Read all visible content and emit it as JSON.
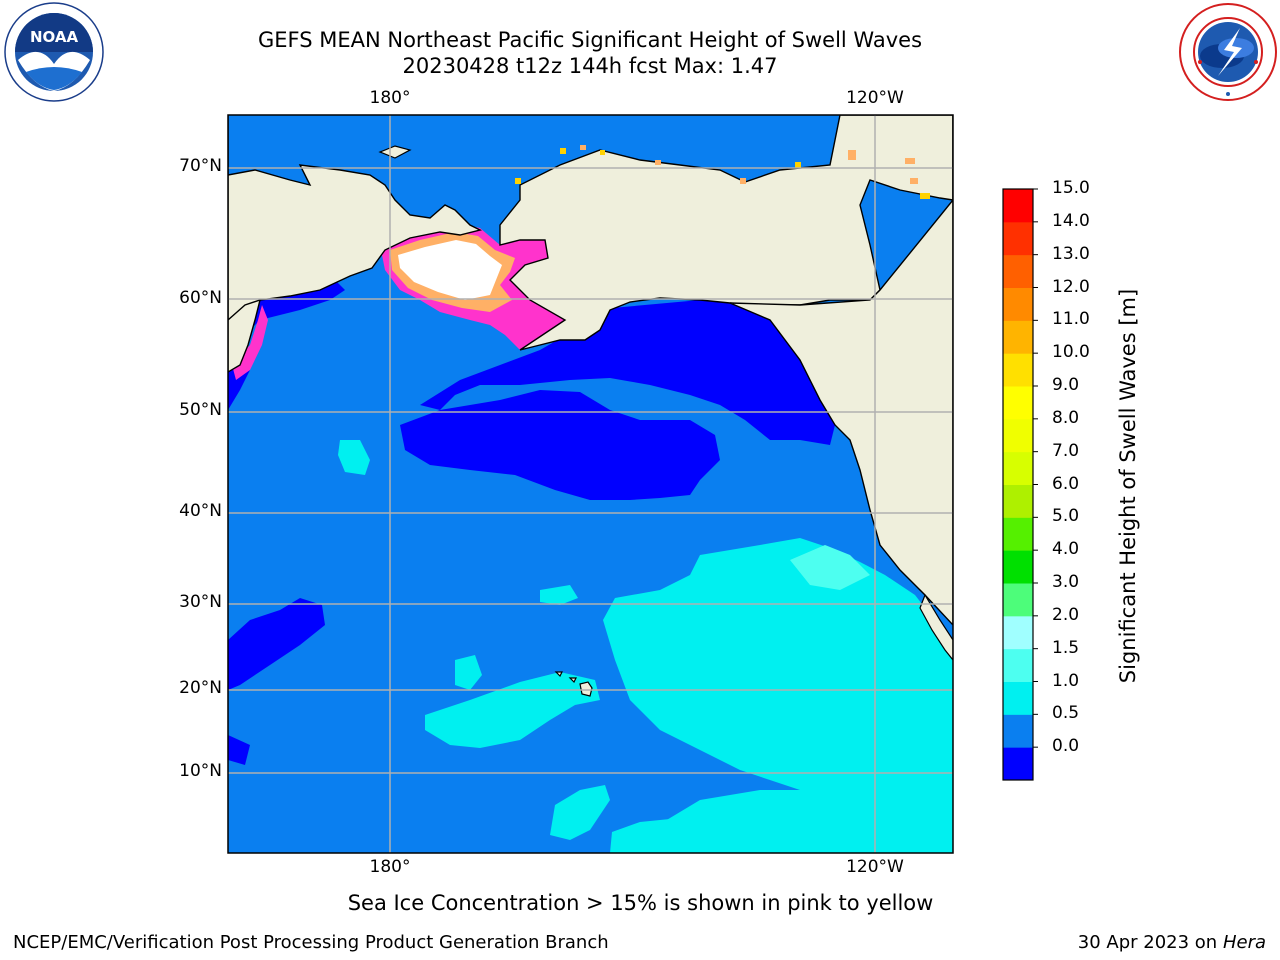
{
  "title": {
    "line1": "GEFS MEAN Northeast Pacific Significant Height of Swell Waves",
    "line2": "20230428 t12z 144h fcst   Max: 1.47"
  },
  "map": {
    "lon_ticks_top": [
      "180°",
      "120°W"
    ],
    "lon_ticks_bottom": [
      "180°",
      "120°W"
    ],
    "lat_ticks": [
      "70°N",
      "60°N",
      "50°N",
      "40°N",
      "30°N",
      "20°N",
      "10°N"
    ],
    "colors": {
      "land": "#efefdc",
      "ice": "#ffffff",
      "grid": "#b0b0b0",
      "band_0_0p5": "#0000ff",
      "band_0p5_1": "#0a7ff0",
      "band_1_1p5": "#00f0f0",
      "band_1p5_2": "#4dfff0",
      "ice_pink": "#ff33cc",
      "ice_orange": "#ffb066",
      "ice_yellow": "#ffd200"
    }
  },
  "colorbar": {
    "label": "Significant Height of Swell Waves [m]",
    "ticks": [
      "15.0",
      "14.0",
      "13.0",
      "12.0",
      "11.0",
      "10.0",
      "9.0",
      "8.0",
      "7.0",
      "6.0",
      "5.0",
      "4.0",
      "3.0",
      "2.0",
      "1.5",
      "1.0",
      "0.5",
      "0.0"
    ],
    "colors": [
      "#0000ff",
      "#0a7ff0",
      "#00f0f0",
      "#4dfff0",
      "#a0ffff",
      "#4dfd7a",
      "#00e000",
      "#55f000",
      "#aef000",
      "#d7ff00",
      "#f0ff00",
      "#ffff00",
      "#ffe000",
      "#ffb400",
      "#ff8a00",
      "#ff6000",
      "#ff3000",
      "#ff0000"
    ]
  },
  "note": "Sea Ice Concentration > 15% is shown in pink to yellow",
  "footer": {
    "left": "NCEP/EMC/Verification Post Processing Product Generation Branch",
    "right_date": "30 Apr 2023 on ",
    "right_host": "Hera"
  },
  "logos": {
    "noaa_text": "NOAA"
  }
}
